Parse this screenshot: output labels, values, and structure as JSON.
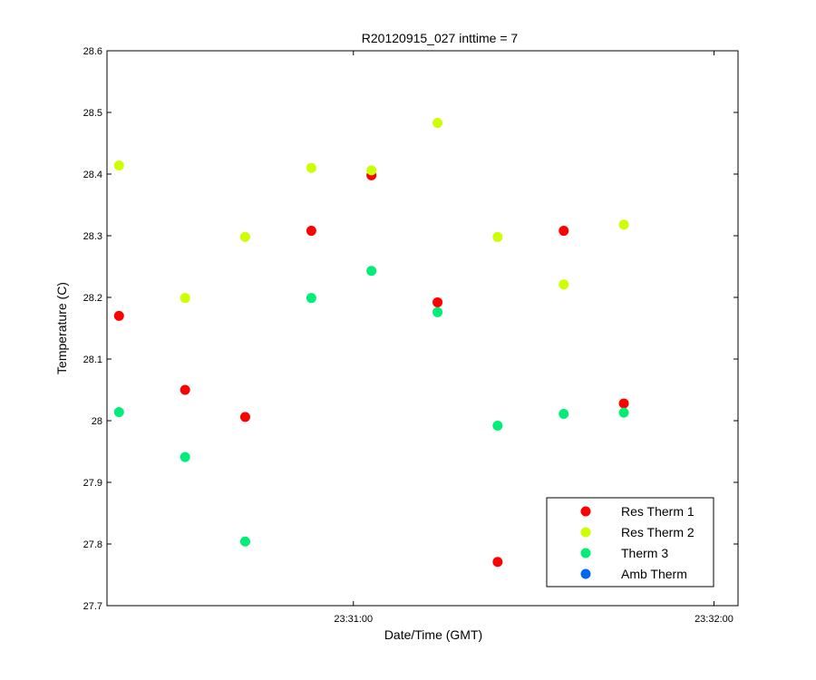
{
  "chart_data": {
    "type": "scatter",
    "title": "R20120915_027 inttime = 7",
    "xlabel": "Date/Time (GMT)",
    "ylabel": "Temperature (C)",
    "xlim": [
      "23:30:19",
      "23:32:04"
    ],
    "ylim": [
      27.7,
      28.6
    ],
    "x_ticks": [
      "23:31:00",
      "23:32:00"
    ],
    "y_ticks": [
      "27.7",
      "27.8",
      "27.9",
      "28",
      "28.1",
      "28.2",
      "28.3",
      "28.4",
      "28.5",
      "28.6"
    ],
    "grid": false,
    "legend_position": "bottom-right",
    "x_times": [
      "23:30:21",
      "23:30:32",
      "23:30:42",
      "23:30:53",
      "23:31:03",
      "23:31:14",
      "23:31:24",
      "23:31:35",
      "23:31:45"
    ],
    "series": [
      {
        "name": "Res Therm 1",
        "color": "#ff0000",
        "values": [
          28.17,
          28.05,
          28.006,
          28.308,
          28.398,
          28.192,
          27.771,
          28.308,
          28.028
        ]
      },
      {
        "name": "Res Therm 2",
        "color": "#ccff00",
        "values": [
          28.414,
          28.199,
          28.298,
          28.41,
          28.406,
          28.483,
          28.298,
          28.221,
          28.318
        ]
      },
      {
        "name": "Therm 3",
        "color": "#00ee77",
        "values": [
          28.014,
          27.941,
          27.804,
          28.199,
          28.243,
          28.176,
          27.992,
          28.011,
          28.013
        ]
      },
      {
        "name": "Amb Therm",
        "color": "#0066ee",
        "values": []
      }
    ]
  }
}
